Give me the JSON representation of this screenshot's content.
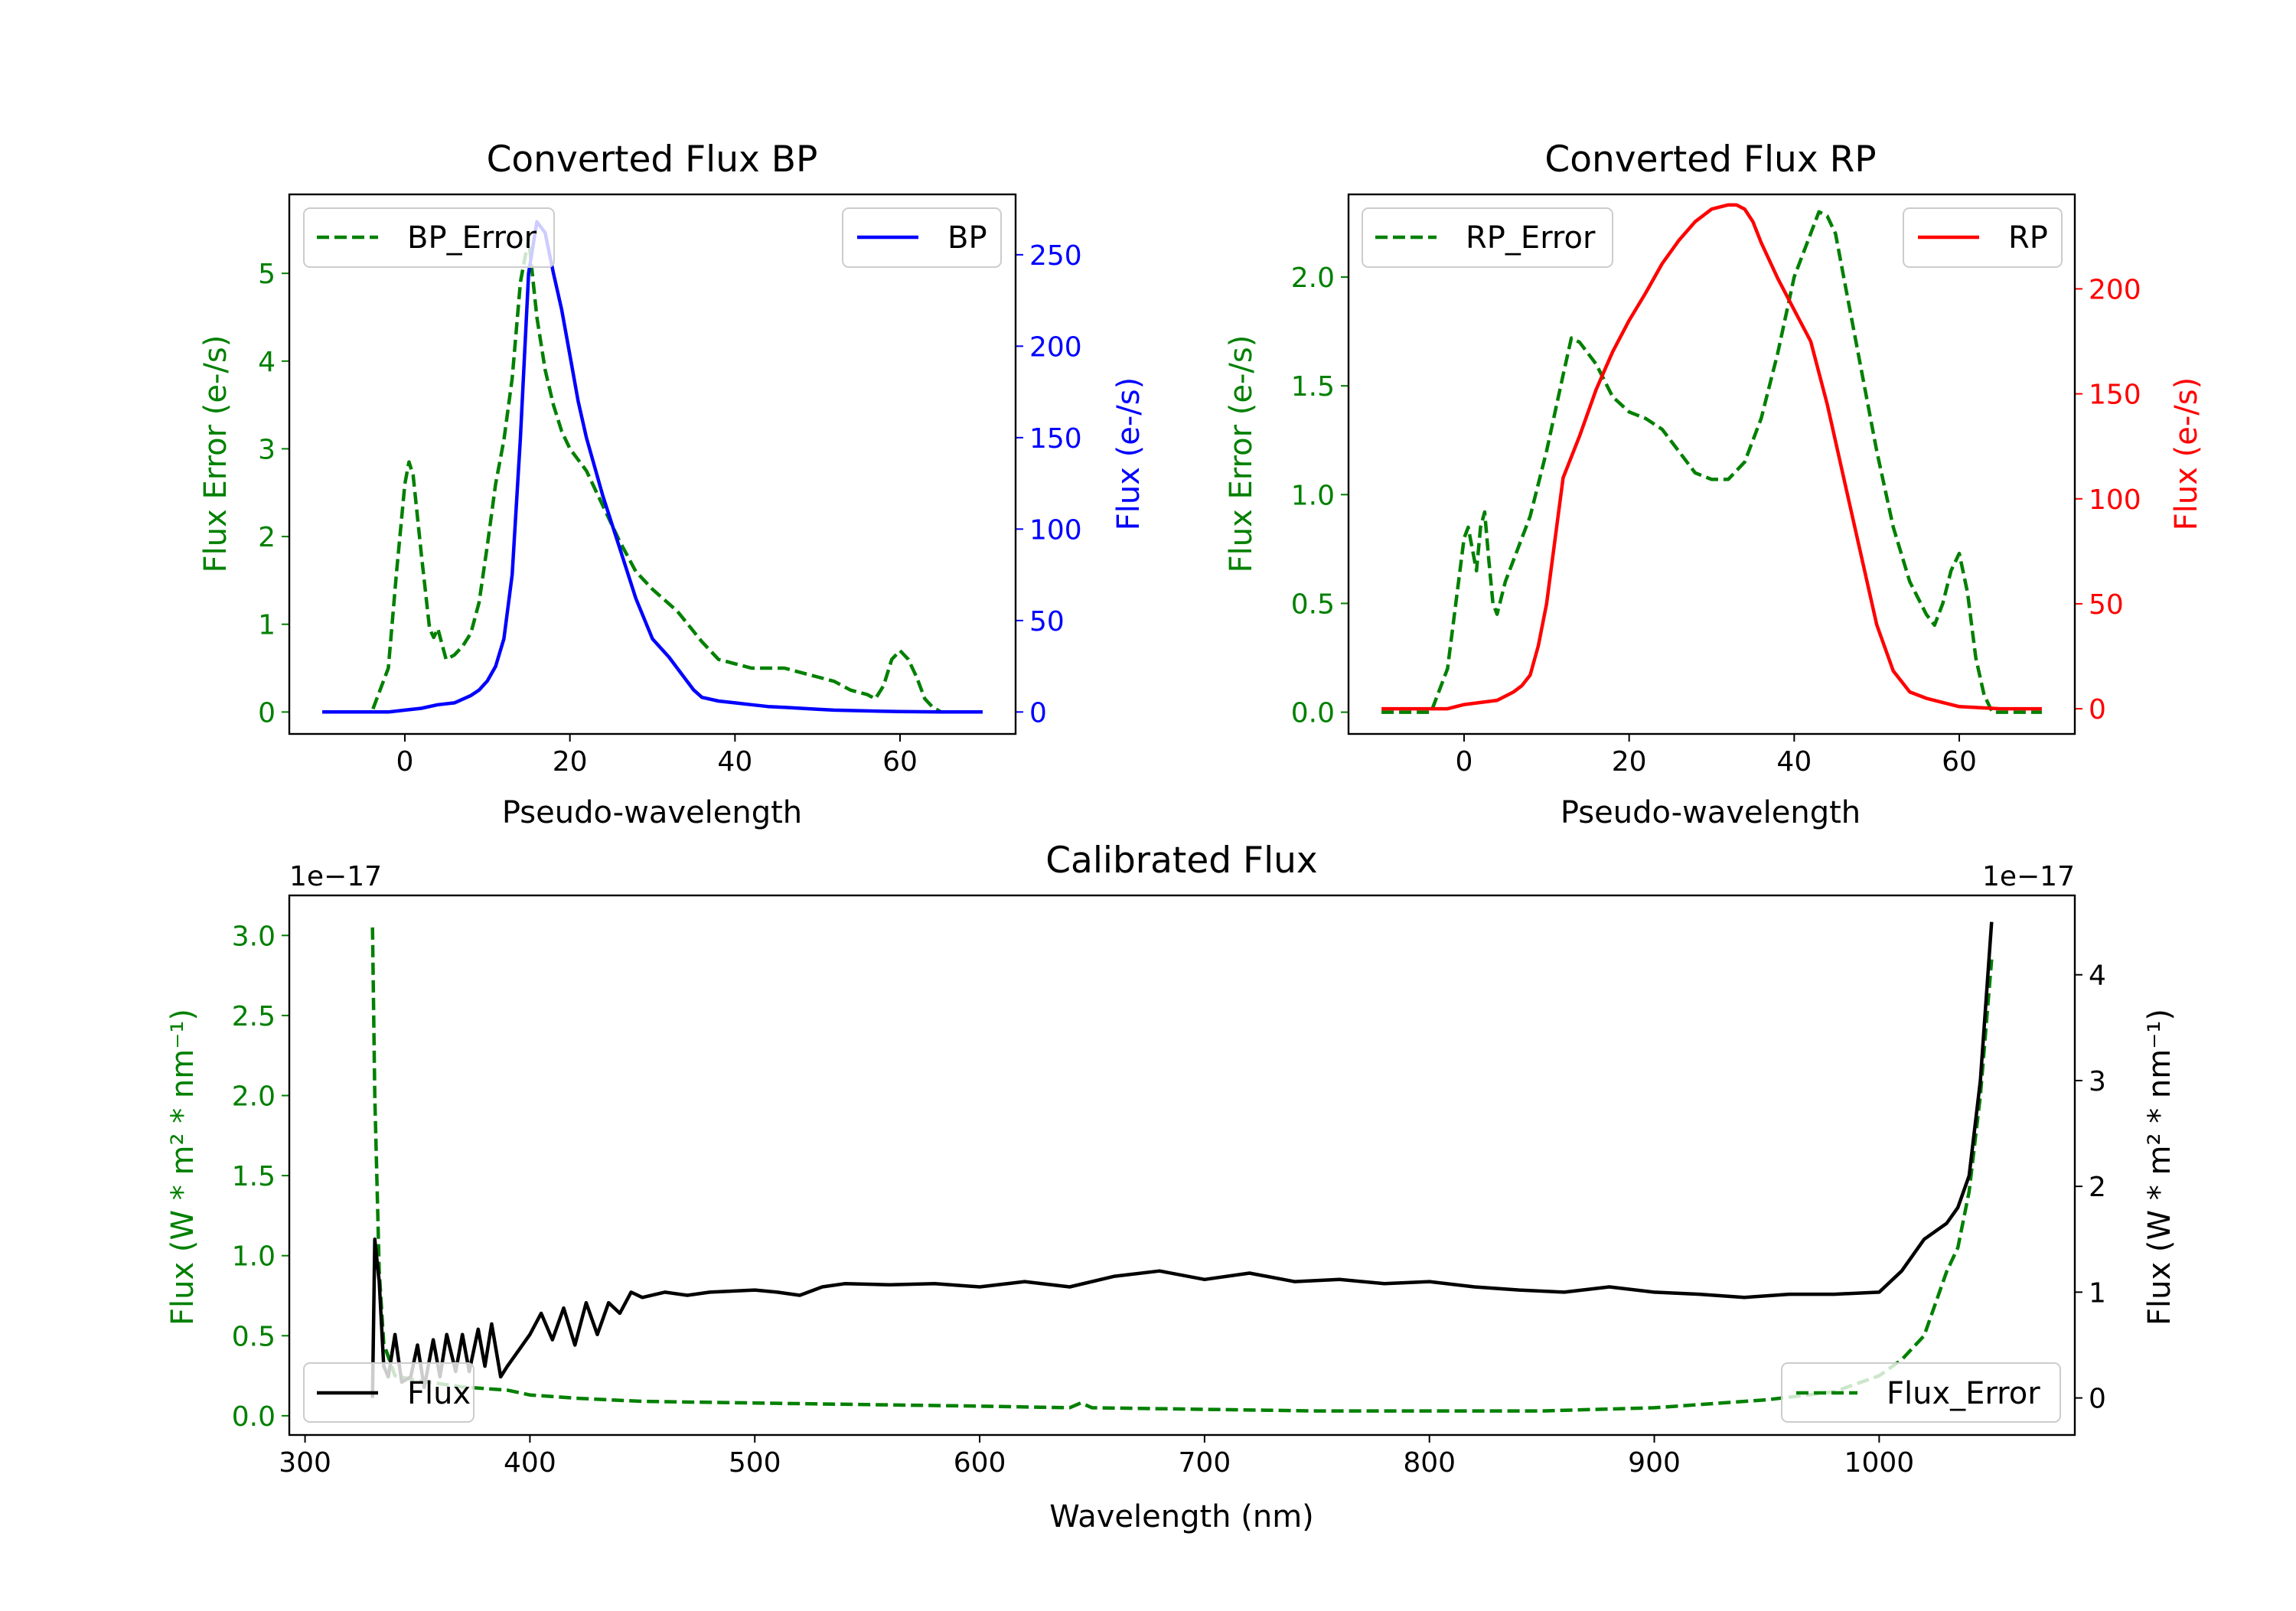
{
  "colors": {
    "green": "#008000",
    "blue": "#0000ff",
    "red": "#ff0000",
    "black": "#000000"
  },
  "chart_data": [
    {
      "id": "bp",
      "type": "line",
      "title": "Converted Flux BP",
      "xlabel": "Pseudo-wavelength",
      "ylabel_left": "Flux Error (e-/s)",
      "ylabel_right": "Flux (e-/s)",
      "xlim": [
        -14,
        74
      ],
      "ylim_left": [
        -0.25,
        5.9
      ],
      "ylim_right": [
        -12,
        283
      ],
      "xticks": [
        0,
        20,
        40,
        60
      ],
      "yticks_left": [
        0,
        1,
        2,
        3,
        4,
        5
      ],
      "yticks_right": [
        0,
        50,
        100,
        150,
        200,
        250
      ],
      "legend_left": {
        "label": "BP_Error",
        "position": "upper left"
      },
      "legend_right": {
        "label": "BP",
        "position": "upper right"
      },
      "series": [
        {
          "name": "BP_Error",
          "axis": "left",
          "color": "#008000",
          "dash": true,
          "x": [
            -10,
            -4,
            -2,
            -1,
            0,
            0.5,
            1,
            2,
            3,
            3.5,
            4,
            5,
            6,
            7,
            8,
            9,
            10,
            11,
            12,
            13,
            14,
            15,
            16,
            17,
            18,
            19,
            20,
            22,
            24,
            26,
            28,
            30,
            33,
            36,
            38,
            40,
            42,
            44,
            46,
            48,
            50,
            52,
            54,
            56,
            57,
            58,
            59,
            60,
            61,
            62,
            63,
            64,
            65,
            67,
            70
          ],
          "y": [
            0,
            0,
            0.5,
            1.6,
            2.6,
            2.85,
            2.7,
            1.8,
            0.95,
            0.85,
            0.95,
            0.6,
            0.65,
            0.75,
            0.9,
            1.25,
            1.9,
            2.6,
            3.1,
            3.8,
            4.9,
            5.4,
            4.5,
            3.9,
            3.5,
            3.2,
            3.0,
            2.75,
            2.35,
            1.95,
            1.6,
            1.4,
            1.15,
            0.8,
            0.6,
            0.55,
            0.5,
            0.5,
            0.5,
            0.45,
            0.4,
            0.35,
            0.25,
            0.2,
            0.15,
            0.3,
            0.6,
            0.7,
            0.6,
            0.4,
            0.15,
            0.05,
            0,
            0,
            0
          ]
        },
        {
          "name": "BP",
          "axis": "right",
          "color": "#0000ff",
          "dash": false,
          "x": [
            -10,
            -2,
            0,
            2,
            4,
            6,
            8,
            9,
            10,
            11,
            12,
            13,
            14,
            15,
            16,
            17,
            18,
            19,
            20,
            21,
            22,
            24,
            26,
            28,
            30,
            32,
            34,
            35,
            36,
            38,
            40,
            42,
            44,
            46,
            48,
            50,
            52,
            54,
            56,
            58,
            60,
            65,
            70
          ],
          "y": [
            0,
            0,
            1,
            2,
            4,
            5,
            9,
            12,
            17,
            25,
            40,
            75,
            150,
            240,
            268,
            262,
            240,
            220,
            195,
            170,
            150,
            118,
            90,
            62,
            40,
            30,
            18,
            12,
            8,
            6,
            5,
            4,
            3,
            2.5,
            2,
            1.5,
            1,
            0.8,
            0.6,
            0.4,
            0.2,
            0,
            0
          ]
        }
      ]
    },
    {
      "id": "rp",
      "type": "line",
      "title": "Converted Flux RP",
      "xlabel": "Pseudo-wavelength",
      "ylabel_left": "Flux Error (e-/s)",
      "ylabel_right": "Flux (e-/s)",
      "xlim": [
        -14,
        74
      ],
      "ylim_left": [
        -0.1,
        2.38
      ],
      "ylim_right": [
        -12,
        245
      ],
      "xticks": [
        0,
        20,
        40,
        60
      ],
      "yticks_left": [
        0.0,
        0.5,
        1.0,
        1.5,
        2.0
      ],
      "yticks_right": [
        0,
        50,
        100,
        150,
        200
      ],
      "legend_left": {
        "label": "RP_Error",
        "position": "upper left"
      },
      "legend_right": {
        "label": "RP",
        "position": "upper right"
      },
      "series": [
        {
          "name": "RP_Error",
          "axis": "left",
          "color": "#008000",
          "dash": true,
          "x": [
            -10,
            -4,
            -2,
            -1,
            0,
            0.5,
            1,
            1.5,
            2,
            2.5,
            3,
            3.5,
            4,
            5,
            6,
            8,
            10,
            12,
            13,
            14,
            16,
            18,
            20,
            22,
            24,
            26,
            28,
            30,
            32,
            34,
            36,
            38,
            40,
            42,
            43,
            44,
            45,
            46,
            48,
            50,
            52,
            54,
            56,
            57,
            58,
            59,
            60,
            61,
            62,
            63,
            64,
            66,
            70
          ],
          "y": [
            0,
            0,
            0.2,
            0.5,
            0.8,
            0.85,
            0.75,
            0.65,
            0.85,
            0.92,
            0.7,
            0.5,
            0.45,
            0.6,
            0.7,
            0.9,
            1.2,
            1.55,
            1.72,
            1.7,
            1.6,
            1.45,
            1.38,
            1.35,
            1.3,
            1.2,
            1.1,
            1.07,
            1.07,
            1.15,
            1.35,
            1.65,
            2.0,
            2.2,
            2.3,
            2.28,
            2.2,
            2.0,
            1.6,
            1.2,
            0.85,
            0.6,
            0.45,
            0.4,
            0.5,
            0.65,
            0.73,
            0.55,
            0.25,
            0.08,
            0,
            0,
            0
          ]
        },
        {
          "name": "RP",
          "axis": "right",
          "color": "#ff0000",
          "dash": false,
          "x": [
            -10,
            -2,
            0,
            2,
            4,
            5,
            6,
            7,
            8,
            9,
            10,
            11,
            12,
            13,
            14,
            16,
            18,
            20,
            22,
            24,
            26,
            28,
            30,
            32,
            33,
            34,
            35,
            36,
            38,
            40,
            42,
            44,
            46,
            48,
            50,
            52,
            54,
            56,
            58,
            60,
            65,
            70
          ],
          "y": [
            0,
            0,
            2,
            3,
            4,
            6,
            8,
            11,
            16,
            30,
            50,
            80,
            110,
            120,
            130,
            152,
            170,
            185,
            198,
            212,
            223,
            232,
            238,
            240,
            240,
            238,
            232,
            222,
            205,
            190,
            175,
            145,
            110,
            75,
            40,
            18,
            8,
            5,
            3,
            1,
            0,
            0
          ]
        }
      ]
    },
    {
      "id": "cal",
      "type": "line",
      "title": "Calibrated Flux",
      "xlabel": "Wavelength (nm)",
      "ylabel_left": "Flux (W * m² * nm⁻¹)",
      "ylabel_right": "Flux (W * m² * nm⁻¹)",
      "offset_left": "1e−17",
      "offset_right": "1e−17",
      "xlim": [
        293,
        1087
      ],
      "ylim_left": [
        -0.12,
        3.25
      ],
      "ylim_right": [
        -0.35,
        4.75
      ],
      "xticks": [
        300,
        400,
        500,
        600,
        700,
        800,
        900,
        1000
      ],
      "yticks_left": [
        0.0,
        0.5,
        1.0,
        1.5,
        2.0,
        2.5,
        3.0
      ],
      "yticks_right": [
        0,
        1,
        2,
        3,
        4
      ],
      "legend_left": {
        "label": "Flux",
        "position": "lower left"
      },
      "legend_right": {
        "label": "Flux_Error",
        "position": "lower right"
      },
      "series": [
        {
          "name": "Flux_Error",
          "axis": "left",
          "color": "#008000",
          "dash": true,
          "x": [
            330,
            331,
            333,
            335,
            340,
            350,
            360,
            370,
            380,
            390,
            400,
            420,
            450,
            500,
            550,
            600,
            640,
            645,
            650,
            700,
            750,
            800,
            850,
            900,
            950,
            980,
            1000,
            1010,
            1020,
            1025,
            1030,
            1035,
            1040,
            1045,
            1050
          ],
          "y": [
            3.05,
            2.0,
            0.9,
            0.45,
            0.25,
            0.22,
            0.2,
            0.18,
            0.17,
            0.16,
            0.13,
            0.11,
            0.09,
            0.08,
            0.07,
            0.06,
            0.05,
            0.08,
            0.05,
            0.04,
            0.03,
            0.03,
            0.03,
            0.05,
            0.1,
            0.15,
            0.25,
            0.35,
            0.5,
            0.7,
            0.9,
            1.05,
            1.4,
            2.0,
            2.85
          ]
        },
        {
          "name": "Flux",
          "axis": "right",
          "color": "#000000",
          "dash": false,
          "x": [
            330,
            331,
            333,
            335,
            337,
            340,
            343,
            347,
            350,
            353,
            357,
            360,
            363,
            367,
            370,
            373,
            377,
            380,
            383,
            387,
            390,
            395,
            400,
            405,
            410,
            415,
            420,
            425,
            430,
            435,
            440,
            445,
            450,
            460,
            470,
            480,
            500,
            510,
            520,
            530,
            540,
            560,
            580,
            600,
            620,
            640,
            660,
            680,
            700,
            720,
            740,
            760,
            780,
            800,
            820,
            840,
            860,
            880,
            900,
            920,
            940,
            960,
            980,
            1000,
            1010,
            1020,
            1030,
            1035,
            1040,
            1045,
            1050
          ],
          "y": [
            0,
            1.5,
            1.1,
            0.3,
            0.2,
            0.6,
            0.15,
            0.2,
            0.5,
            0.1,
            0.55,
            0.2,
            0.6,
            0.25,
            0.6,
            0.25,
            0.65,
            0.3,
            0.7,
            0.2,
            0.3,
            0.45,
            0.6,
            0.8,
            0.55,
            0.85,
            0.5,
            0.9,
            0.6,
            0.9,
            0.8,
            1.0,
            0.95,
            1.0,
            0.97,
            1.0,
            1.02,
            1.0,
            0.97,
            1.05,
            1.08,
            1.07,
            1.08,
            1.05,
            1.1,
            1.05,
            1.15,
            1.2,
            1.12,
            1.18,
            1.1,
            1.12,
            1.08,
            1.1,
            1.05,
            1.02,
            1.0,
            1.05,
            1.0,
            0.98,
            0.95,
            0.98,
            0.98,
            1.0,
            1.2,
            1.5,
            1.65,
            1.8,
            2.1,
            3.0,
            4.5
          ]
        }
      ]
    }
  ]
}
